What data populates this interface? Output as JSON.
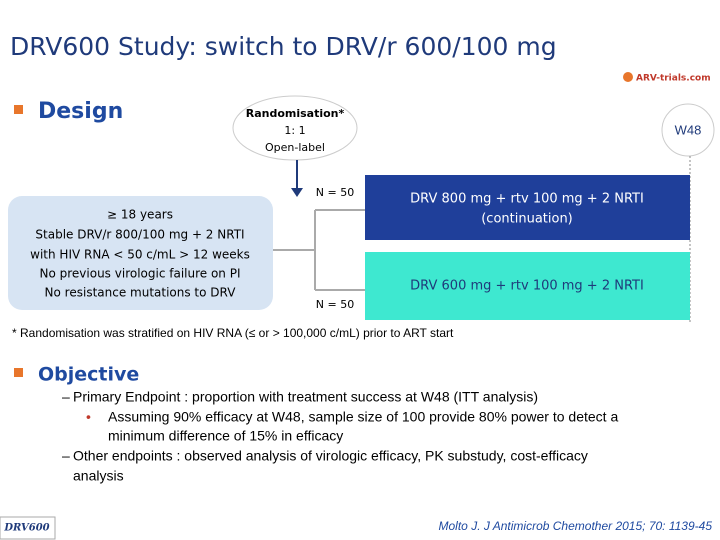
{
  "header": {
    "title": "DRV600 Study: switch to DRV/r 600/100 mg",
    "logo": "ARV-trials.com"
  },
  "design": {
    "label": "Design",
    "randomisation": [
      "Randomisation*",
      "1: 1",
      "Open-label"
    ],
    "week": "W48",
    "population": [
      "≥ 18 years",
      "Stable DRV/r 800/100 mg + 2 NRTI",
      "with HIV RNA < 50 c/mL > 12 weeks",
      "No previous virologic failure on PI",
      "No resistance mutations to DRV"
    ],
    "arms": [
      {
        "n": "N = 50",
        "lines": [
          "DRV 800 mg + rtv 100 mg + 2 NRTI",
          "(continuation)"
        ]
      },
      {
        "n": "N = 50",
        "lines": [
          "DRV 600 mg + rtv 100 mg + 2 NRTI"
        ]
      }
    ],
    "footnote": "* Randomisation was stratified on HIV RNA (≤ or > 100,000 c/mL) prior to ART start"
  },
  "objective": {
    "label": "Objective",
    "items": [
      {
        "marker": "–",
        "lines": [
          "Primary Endpoint : proportion with treatment success at W48 (ITT analysis)"
        ]
      },
      {
        "marker": "•",
        "lines": [
          "Assuming 90% efficacy at W48, sample size of 100 provide 80% power to detect a",
          "minimum difference of 15% in efficacy"
        ]
      },
      {
        "marker": "–",
        "lines": [
          "Other endpoints : observed analysis of virologic efficacy, PK substudy, cost-efficacy",
          "analysis"
        ]
      }
    ]
  },
  "footer": {
    "tag": "DRV600",
    "citation": "Molto J. J Antimicrob Chemother 2015; 70: 1139-45"
  }
}
